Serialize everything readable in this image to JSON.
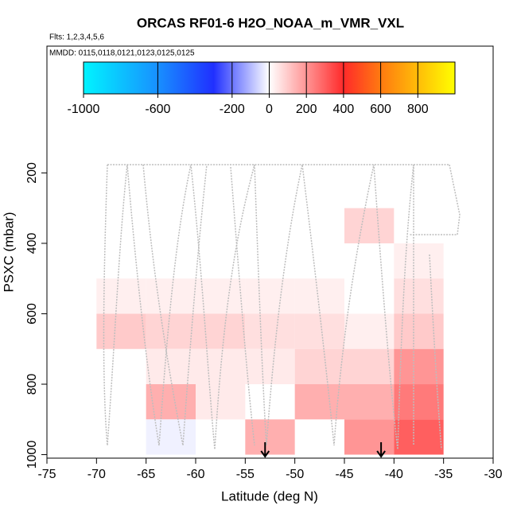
{
  "chart_data": {
    "type": "heatmap",
    "title": "ORCAS RF01-6 H2O_NOAA_m_VMR_VXL",
    "subtitle": "Flts: 1,2,3,4,5,6",
    "annotation": "MMDD: 0115,0118,0121,0123,0125,0125",
    "x_label": "Latitude (deg N)",
    "y_label": "PSXC (mbar)",
    "xlim": [
      -75,
      -30
    ],
    "xticks": [
      -75,
      -70,
      -65,
      -60,
      -55,
      -50,
      -45,
      -40,
      -35,
      -30
    ],
    "ylim": [
      1010,
      -160
    ],
    "yticks": [
      200,
      400,
      600,
      800,
      1000
    ],
    "cell_width": 5,
    "cell_height": 100,
    "x": [
      -42.5,
      -37.5,
      -67.5,
      -62.5,
      -57.5,
      -52.5,
      -47.5,
      -37.5,
      -67.5,
      -62.5,
      -57.5,
      -52.5,
      -47.5,
      -42.5,
      -37.5,
      -62.5,
      -57.5,
      -52.5,
      -47.5,
      -42.5,
      -37.5,
      -62.5,
      -57.5,
      -47.5,
      -42.5,
      -37.5,
      -62.5,
      -52.5,
      -42.5,
      -37.5
    ],
    "y": [
      350,
      450,
      550,
      550,
      550,
      550,
      550,
      550,
      650,
      650,
      650,
      650,
      650,
      650,
      650,
      750,
      750,
      750,
      750,
      750,
      750,
      850,
      850,
      850,
      850,
      850,
      950,
      950,
      950,
      950
    ],
    "values": [
      80,
      30,
      30,
      30,
      30,
      30,
      30,
      60,
      100,
      80,
      80,
      60,
      60,
      30,
      100,
      40,
      40,
      40,
      80,
      80,
      200,
      150,
      40,
      150,
      150,
      250,
      -20,
      150,
      200,
      300
    ],
    "arrows": [
      -53,
      -41.3
    ],
    "colorbar_lim": [
      -1000,
      1000
    ],
    "colorbar_ticks": [
      -1000,
      -600,
      -200,
      0,
      200,
      400,
      600,
      800
    ],
    "colorscale": [
      [
        -1000,
        "#00f4ff"
      ],
      [
        -600,
        "#1890ff"
      ],
      [
        -300,
        "#2030ff"
      ],
      [
        0,
        "#ffffff"
      ],
      [
        400,
        "#ff2a2a"
      ],
      [
        600,
        "#ff7a10"
      ],
      [
        1000,
        "#ffff00"
      ]
    ]
  }
}
